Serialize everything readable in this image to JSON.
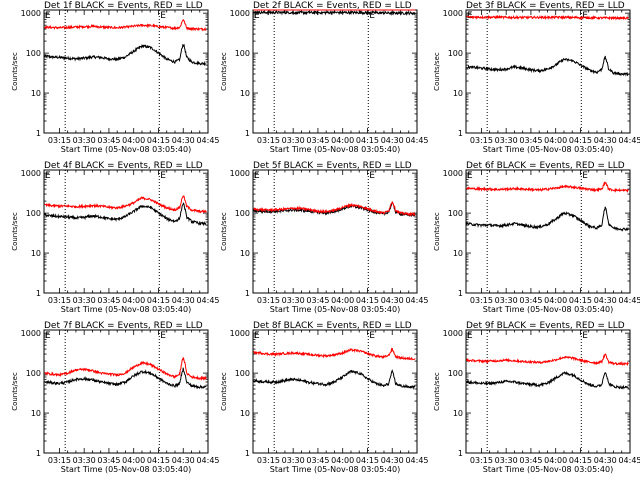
{
  "common": {
    "xtick_labels": [
      "03:15",
      "03:30",
      "03:45",
      "04:00",
      "04:15",
      "04:30",
      "04:45"
    ],
    "xticks_min": [
      15,
      30,
      45,
      60,
      75,
      90,
      105
    ],
    "xlim_min": [
      5.67,
      105
    ],
    "ylim": [
      1,
      1200
    ],
    "yscale": "log",
    "ytick_labels": [
      "1",
      "10",
      "100",
      "1000"
    ],
    "ytick_values": [
      1,
      10,
      100,
      1000
    ],
    "ylabel": "Counts/sec",
    "xlabel": "Start Time (05-Nov-08 03:05:40)",
    "vlines_min": [
      18.5,
      75.5
    ],
    "marker_left": "E",
    "marker_right": "E",
    "colors": {
      "events": "#000000",
      "lld": "#ff0000",
      "axes": "#000000"
    }
  },
  "chart_data": [
    {
      "type": "line",
      "title": "Det 1f BLACK = Events, RED = LLD",
      "x_unit": "minutes after 03:00",
      "series": [
        {
          "key": "events",
          "color": "#000000",
          "x": [
            6,
            10,
            15,
            20,
            25,
            30,
            35,
            40,
            45,
            50,
            55,
            60,
            65,
            70,
            75,
            80,
            85,
            88,
            90,
            92,
            95,
            100,
            104
          ],
          "y": [
            85,
            80,
            78,
            75,
            72,
            75,
            80,
            78,
            72,
            70,
            80,
            110,
            150,
            140,
            100,
            70,
            60,
            70,
            170,
            80,
            60,
            55,
            55
          ]
        },
        {
          "key": "lld",
          "color": "#ff0000",
          "x": [
            6,
            10,
            15,
            20,
            25,
            30,
            35,
            40,
            45,
            50,
            55,
            60,
            65,
            70,
            75,
            80,
            85,
            88,
            90,
            92,
            95,
            100,
            104
          ],
          "y": [
            450,
            440,
            430,
            440,
            450,
            460,
            470,
            450,
            440,
            430,
            450,
            470,
            500,
            490,
            460,
            440,
            420,
            440,
            700,
            430,
            410,
            400,
            400
          ]
        }
      ]
    },
    {
      "type": "line",
      "title": "Det 2f BLACK = Events, RED = LLD",
      "x_unit": "minutes after 03:00",
      "series": [
        {
          "key": "events",
          "color": "#000000",
          "x": [
            6,
            20,
            40,
            60,
            70,
            80,
            90,
            100,
            104
          ],
          "y": [
            1050,
            1040,
            1030,
            1040,
            1030,
            1020,
            1010,
            1000,
            1000
          ]
        },
        {
          "key": "lld",
          "color": "#ff0000",
          "x": [
            6,
            20,
            40,
            60,
            70,
            80,
            90,
            100,
            104
          ],
          "y": [
            1500,
            1450,
            1420,
            1400,
            1380,
            1370,
            1360,
            1350,
            1350
          ]
        }
      ]
    },
    {
      "type": "line",
      "title": "Det 3f BLACK = Events, RED = LLD",
      "x_unit": "minutes after 03:00",
      "series": [
        {
          "key": "events",
          "color": "#000000",
          "x": [
            6,
            10,
            15,
            20,
            25,
            30,
            35,
            40,
            45,
            50,
            55,
            60,
            65,
            70,
            75,
            80,
            85,
            88,
            90,
            92,
            95,
            100,
            104
          ],
          "y": [
            45,
            44,
            42,
            40,
            38,
            40,
            45,
            42,
            38,
            36,
            40,
            50,
            70,
            65,
            50,
            38,
            33,
            40,
            80,
            40,
            32,
            30,
            30
          ]
        },
        {
          "key": "lld",
          "color": "#ff0000",
          "x": [
            6,
            20,
            40,
            60,
            80,
            90,
            104
          ],
          "y": [
            800,
            790,
            780,
            790,
            770,
            760,
            750
          ]
        }
      ]
    },
    {
      "type": "line",
      "title": "Det 4f BLACK = Events, RED = LLD",
      "x_unit": "minutes after 03:00",
      "series": [
        {
          "key": "events",
          "color": "#000000",
          "x": [
            6,
            10,
            15,
            20,
            25,
            30,
            35,
            40,
            45,
            50,
            55,
            60,
            65,
            70,
            75,
            80,
            85,
            88,
            90,
            92,
            95,
            100,
            104
          ],
          "y": [
            90,
            85,
            82,
            80,
            75,
            78,
            85,
            80,
            72,
            70,
            82,
            110,
            150,
            140,
            100,
            72,
            62,
            75,
            180,
            80,
            62,
            55,
            55
          ]
        },
        {
          "key": "lld",
          "color": "#ff0000",
          "x": [
            6,
            10,
            15,
            20,
            25,
            30,
            35,
            40,
            45,
            50,
            55,
            60,
            65,
            70,
            75,
            80,
            85,
            88,
            90,
            92,
            95,
            100,
            104
          ],
          "y": [
            160,
            155,
            150,
            150,
            145,
            148,
            155,
            150,
            140,
            135,
            150,
            180,
            240,
            220,
            170,
            135,
            120,
            140,
            280,
            150,
            120,
            110,
            110
          ]
        }
      ]
    },
    {
      "type": "line",
      "title": "Det 5f BLACK = Events, RED = LLD",
      "x_unit": "minutes after 03:00",
      "series": [
        {
          "key": "events",
          "color": "#000000",
          "x": [
            6,
            10,
            15,
            20,
            25,
            30,
            35,
            40,
            45,
            50,
            55,
            60,
            65,
            70,
            75,
            80,
            85,
            88,
            90,
            92,
            95,
            100,
            104
          ],
          "y": [
            115,
            112,
            110,
            112,
            115,
            120,
            118,
            112,
            105,
            100,
            110,
            130,
            150,
            140,
            120,
            105,
            95,
            110,
            180,
            110,
            95,
            90,
            90
          ]
        },
        {
          "key": "lld",
          "color": "#ff0000",
          "x": [
            6,
            10,
            15,
            20,
            25,
            30,
            35,
            40,
            45,
            50,
            55,
            60,
            65,
            70,
            75,
            80,
            85,
            88,
            90,
            92,
            95,
            100,
            104
          ],
          "y": [
            125,
            122,
            120,
            122,
            126,
            132,
            130,
            122,
            112,
            108,
            118,
            140,
            160,
            150,
            128,
            112,
            100,
            118,
            195,
            118,
            100,
            95,
            95
          ]
        }
      ]
    },
    {
      "type": "line",
      "title": "Det 6f BLACK = Events, RED = LLD",
      "x_unit": "minutes after 03:00",
      "series": [
        {
          "key": "events",
          "color": "#000000",
          "x": [
            6,
            10,
            15,
            20,
            25,
            30,
            35,
            40,
            45,
            50,
            55,
            60,
            65,
            70,
            75,
            80,
            85,
            88,
            90,
            92,
            95,
            100,
            104
          ],
          "y": [
            55,
            52,
            50,
            50,
            48,
            50,
            55,
            50,
            46,
            45,
            52,
            70,
            100,
            90,
            65,
            48,
            42,
            50,
            140,
            55,
            42,
            40,
            40
          ]
        },
        {
          "key": "lld",
          "color": "#ff0000",
          "x": [
            6,
            10,
            15,
            20,
            25,
            30,
            35,
            40,
            45,
            50,
            55,
            60,
            65,
            70,
            75,
            80,
            85,
            88,
            90,
            92,
            95,
            100,
            104
          ],
          "y": [
            420,
            410,
            400,
            400,
            390,
            400,
            410,
            400,
            390,
            380,
            400,
            420,
            460,
            450,
            420,
            395,
            380,
            400,
            600,
            400,
            380,
            370,
            370
          ]
        }
      ]
    },
    {
      "type": "line",
      "title": "Det 7f BLACK = Events, RED = LLD",
      "x_unit": "minutes after 03:00",
      "series": [
        {
          "key": "events",
          "color": "#000000",
          "x": [
            6,
            10,
            15,
            20,
            25,
            30,
            35,
            40,
            45,
            50,
            55,
            60,
            65,
            70,
            75,
            80,
            85,
            88,
            90,
            92,
            95,
            100,
            104
          ],
          "y": [
            60,
            58,
            55,
            60,
            70,
            72,
            68,
            60,
            55,
            52,
            60,
            85,
            110,
            100,
            75,
            55,
            48,
            55,
            130,
            60,
            48,
            45,
            45
          ]
        },
        {
          "key": "lld",
          "color": "#ff0000",
          "x": [
            6,
            10,
            15,
            20,
            25,
            30,
            35,
            40,
            45,
            50,
            55,
            60,
            65,
            70,
            75,
            80,
            85,
            88,
            90,
            92,
            95,
            100,
            104
          ],
          "y": [
            100,
            95,
            90,
            100,
            120,
            125,
            115,
            100,
            95,
            90,
            100,
            140,
            180,
            165,
            125,
            95,
            80,
            95,
            250,
            100,
            80,
            75,
            75
          ]
        }
      ]
    },
    {
      "type": "line",
      "title": "Det 8f BLACK = Events, RED = LLD",
      "x_unit": "minutes after 03:00",
      "series": [
        {
          "key": "events",
          "color": "#000000",
          "x": [
            6,
            10,
            15,
            20,
            25,
            30,
            35,
            40,
            45,
            50,
            55,
            60,
            65,
            70,
            75,
            80,
            85,
            88,
            90,
            92,
            95,
            100,
            104
          ],
          "y": [
            65,
            62,
            60,
            60,
            65,
            70,
            65,
            58,
            55,
            52,
            60,
            80,
            110,
            100,
            72,
            55,
            48,
            55,
            110,
            55,
            48,
            45,
            45
          ]
        },
        {
          "key": "lld",
          "color": "#ff0000",
          "x": [
            6,
            10,
            15,
            20,
            25,
            30,
            35,
            40,
            45,
            50,
            55,
            60,
            65,
            70,
            75,
            80,
            85,
            88,
            90,
            92,
            95,
            100,
            104
          ],
          "y": [
            330,
            320,
            300,
            300,
            310,
            320,
            310,
            290,
            280,
            270,
            290,
            320,
            380,
            360,
            310,
            270,
            250,
            280,
            400,
            260,
            240,
            230,
            230
          ]
        }
      ]
    },
    {
      "type": "line",
      "title": "Det 9f BLACK = Events, RED = LLD",
      "x_unit": "minutes after 03:00",
      "series": [
        {
          "key": "events",
          "color": "#000000",
          "x": [
            6,
            10,
            15,
            20,
            25,
            30,
            35,
            40,
            45,
            50,
            55,
            60,
            65,
            70,
            75,
            80,
            85,
            88,
            90,
            92,
            95,
            100,
            104
          ],
          "y": [
            60,
            58,
            55,
            55,
            58,
            62,
            60,
            55,
            52,
            50,
            56,
            75,
            100,
            92,
            68,
            52,
            46,
            52,
            110,
            55,
            46,
            44,
            44
          ]
        },
        {
          "key": "lld",
          "color": "#ff0000",
          "x": [
            6,
            10,
            15,
            20,
            25,
            30,
            35,
            40,
            45,
            50,
            55,
            60,
            65,
            70,
            75,
            80,
            85,
            88,
            90,
            92,
            95,
            100,
            104
          ],
          "y": [
            210,
            205,
            200,
            200,
            205,
            210,
            205,
            195,
            190,
            185,
            195,
            215,
            250,
            240,
            210,
            190,
            180,
            195,
            300,
            190,
            175,
            170,
            170
          ]
        }
      ]
    }
  ]
}
